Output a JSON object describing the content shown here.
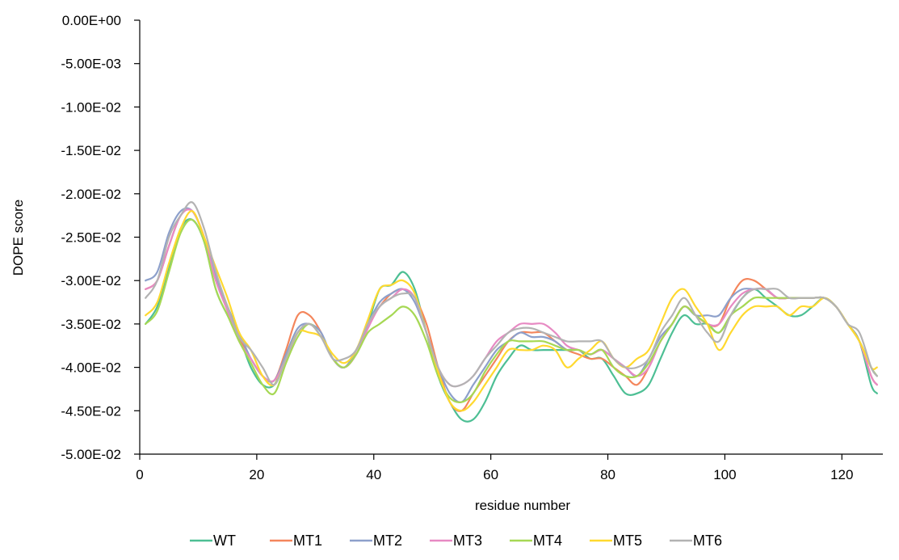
{
  "chart_data": {
    "type": "line",
    "title": "",
    "xlabel": "residue number",
    "ylabel": "DOPE score",
    "xlim": [
      0,
      127
    ],
    "ylim": [
      -0.05,
      0
    ],
    "xticks": [
      0,
      20,
      40,
      60,
      80,
      100,
      120
    ],
    "xtick_labels": [
      "0",
      "20",
      "40",
      "60",
      "80",
      "100",
      "120"
    ],
    "yticks": [
      0,
      -0.005,
      -0.01,
      -0.015,
      -0.02,
      -0.025,
      -0.03,
      -0.035,
      -0.04,
      -0.045,
      -0.05
    ],
    "ytick_labels": [
      "0.00E+00",
      "-5.00E-03",
      "-1.00E-02",
      "-1.50E-02",
      "-2.00E-02",
      "-2.50E-02",
      "-3.00E-02",
      "-3.50E-02",
      "-4.00E-02",
      "-4.50E-02",
      "-5.00E-02"
    ],
    "grid": false,
    "legend_position": "bottom",
    "x": [
      1,
      3,
      5,
      7,
      9,
      11,
      13,
      15,
      17,
      19,
      21,
      23,
      25,
      27,
      29,
      31,
      33,
      35,
      37,
      39,
      41,
      43,
      45,
      47,
      49,
      51,
      53,
      55,
      57,
      59,
      61,
      63,
      65,
      67,
      69,
      71,
      73,
      75,
      77,
      79,
      81,
      83,
      85,
      87,
      89,
      91,
      93,
      95,
      97,
      99,
      101,
      103,
      105,
      107,
      109,
      111,
      113,
      115,
      117,
      119,
      121,
      123,
      125,
      126
    ],
    "series": [
      {
        "name": "WT",
        "color": "#4dbf94",
        "values": [
          -0.035,
          -0.033,
          -0.0285,
          -0.024,
          -0.023,
          -0.0255,
          -0.031,
          -0.034,
          -0.0365,
          -0.04,
          -0.042,
          -0.042,
          -0.039,
          -0.036,
          -0.035,
          -0.0365,
          -0.039,
          -0.04,
          -0.038,
          -0.035,
          -0.031,
          -0.0305,
          -0.029,
          -0.031,
          -0.036,
          -0.041,
          -0.044,
          -0.046,
          -0.046,
          -0.044,
          -0.041,
          -0.039,
          -0.0375,
          -0.038,
          -0.038,
          -0.038,
          -0.038,
          -0.038,
          -0.039,
          -0.039,
          -0.041,
          -0.043,
          -0.043,
          -0.042,
          -0.039,
          -0.036,
          -0.034,
          -0.035,
          -0.035,
          -0.036,
          -0.034,
          -0.032,
          -0.031,
          -0.032,
          -0.033,
          -0.034,
          -0.034,
          -0.033,
          -0.032,
          -0.033,
          -0.035,
          -0.037,
          -0.042,
          -0.043
        ]
      },
      {
        "name": "MT1",
        "color": "#f4865c",
        "values": [
          -0.031,
          -0.03,
          -0.026,
          -0.0225,
          -0.022,
          -0.025,
          -0.03,
          -0.033,
          -0.0365,
          -0.039,
          -0.041,
          -0.0415,
          -0.038,
          -0.034,
          -0.034,
          -0.036,
          -0.039,
          -0.04,
          -0.038,
          -0.035,
          -0.033,
          -0.0315,
          -0.031,
          -0.032,
          -0.035,
          -0.04,
          -0.044,
          -0.045,
          -0.043,
          -0.041,
          -0.039,
          -0.037,
          -0.036,
          -0.036,
          -0.036,
          -0.037,
          -0.038,
          -0.0385,
          -0.039,
          -0.039,
          -0.04,
          -0.041,
          -0.042,
          -0.04,
          -0.037,
          -0.035,
          -0.033,
          -0.034,
          -0.035,
          -0.035,
          -0.032,
          -0.03,
          -0.03,
          -0.031,
          -0.032,
          -0.032,
          -0.032,
          -0.032,
          -0.032,
          -0.033,
          -0.035,
          -0.037,
          -0.041,
          -0.042
        ]
      },
      {
        "name": "MT2",
        "color": "#8da0cb",
        "values": [
          -0.03,
          -0.029,
          -0.0245,
          -0.022,
          -0.022,
          -0.025,
          -0.0295,
          -0.033,
          -0.036,
          -0.039,
          -0.041,
          -0.0415,
          -0.0385,
          -0.0355,
          -0.035,
          -0.036,
          -0.039,
          -0.04,
          -0.038,
          -0.035,
          -0.0325,
          -0.0315,
          -0.031,
          -0.0325,
          -0.036,
          -0.04,
          -0.043,
          -0.044,
          -0.042,
          -0.04,
          -0.038,
          -0.037,
          -0.036,
          -0.0365,
          -0.0365,
          -0.037,
          -0.038,
          -0.038,
          -0.0385,
          -0.038,
          -0.039,
          -0.04,
          -0.041,
          -0.039,
          -0.0365,
          -0.035,
          -0.033,
          -0.034,
          -0.034,
          -0.034,
          -0.032,
          -0.031,
          -0.031,
          -0.031,
          -0.032,
          -0.032,
          -0.032,
          -0.032,
          -0.032,
          -0.033,
          -0.035,
          -0.037,
          -0.04,
          -0.041
        ]
      },
      {
        "name": "MT3",
        "color": "#e78ac3",
        "values": [
          -0.031,
          -0.03,
          -0.026,
          -0.0225,
          -0.022,
          -0.025,
          -0.03,
          -0.0335,
          -0.037,
          -0.039,
          -0.041,
          -0.0415,
          -0.039,
          -0.036,
          -0.035,
          -0.0365,
          -0.039,
          -0.04,
          -0.0385,
          -0.0355,
          -0.033,
          -0.032,
          -0.031,
          -0.032,
          -0.036,
          -0.04,
          -0.042,
          -0.042,
          -0.041,
          -0.039,
          -0.037,
          -0.036,
          -0.035,
          -0.035,
          -0.035,
          -0.036,
          -0.0375,
          -0.038,
          -0.0385,
          -0.038,
          -0.039,
          -0.04,
          -0.041,
          -0.04,
          -0.037,
          -0.035,
          -0.033,
          -0.034,
          -0.035,
          -0.035,
          -0.033,
          -0.0315,
          -0.031,
          -0.031,
          -0.032,
          -0.032,
          -0.032,
          -0.032,
          -0.032,
          -0.033,
          -0.035,
          -0.037,
          -0.041,
          -0.042
        ]
      },
      {
        "name": "MT4",
        "color": "#a6d854",
        "values": [
          -0.035,
          -0.0335,
          -0.029,
          -0.0245,
          -0.023,
          -0.0255,
          -0.031,
          -0.034,
          -0.037,
          -0.0395,
          -0.042,
          -0.043,
          -0.0395,
          -0.0365,
          -0.035,
          -0.0365,
          -0.039,
          -0.04,
          -0.0385,
          -0.036,
          -0.035,
          -0.034,
          -0.033,
          -0.034,
          -0.037,
          -0.041,
          -0.0435,
          -0.044,
          -0.043,
          -0.0405,
          -0.0385,
          -0.037,
          -0.037,
          -0.037,
          -0.037,
          -0.0375,
          -0.038,
          -0.038,
          -0.0385,
          -0.038,
          -0.04,
          -0.041,
          -0.041,
          -0.0395,
          -0.037,
          -0.035,
          -0.033,
          -0.034,
          -0.035,
          -0.036,
          -0.034,
          -0.033,
          -0.032,
          -0.032,
          -0.032,
          -0.032,
          -0.032,
          -0.032,
          -0.032,
          -0.033,
          -0.035,
          -0.037,
          -0.04,
          -0.041
        ]
      },
      {
        "name": "MT5",
        "color": "#ffd92f",
        "values": [
          -0.034,
          -0.0325,
          -0.028,
          -0.024,
          -0.022,
          -0.025,
          -0.0285,
          -0.032,
          -0.036,
          -0.038,
          -0.041,
          -0.042,
          -0.039,
          -0.036,
          -0.036,
          -0.0365,
          -0.0385,
          -0.0395,
          -0.038,
          -0.0345,
          -0.031,
          -0.0305,
          -0.03,
          -0.0315,
          -0.036,
          -0.0405,
          -0.044,
          -0.045,
          -0.044,
          -0.042,
          -0.04,
          -0.038,
          -0.038,
          -0.038,
          -0.0375,
          -0.038,
          -0.04,
          -0.039,
          -0.038,
          -0.037,
          -0.039,
          -0.04,
          -0.039,
          -0.038,
          -0.035,
          -0.032,
          -0.031,
          -0.033,
          -0.035,
          -0.038,
          -0.036,
          -0.034,
          -0.033,
          -0.033,
          -0.033,
          -0.034,
          -0.033,
          -0.033,
          -0.032,
          -0.033,
          -0.035,
          -0.037,
          -0.04,
          -0.04
        ]
      },
      {
        "name": "MT6",
        "color": "#b3b3b3",
        "values": [
          -0.032,
          -0.03,
          -0.025,
          -0.0225,
          -0.021,
          -0.024,
          -0.029,
          -0.033,
          -0.0365,
          -0.038,
          -0.04,
          -0.042,
          -0.039,
          -0.036,
          -0.035,
          -0.0365,
          -0.039,
          -0.039,
          -0.038,
          -0.035,
          -0.033,
          -0.032,
          -0.0315,
          -0.032,
          -0.036,
          -0.04,
          -0.042,
          -0.042,
          -0.041,
          -0.039,
          -0.0375,
          -0.036,
          -0.0355,
          -0.0355,
          -0.036,
          -0.0365,
          -0.037,
          -0.037,
          -0.037,
          -0.037,
          -0.039,
          -0.04,
          -0.04,
          -0.039,
          -0.036,
          -0.034,
          -0.032,
          -0.034,
          -0.036,
          -0.037,
          -0.034,
          -0.032,
          -0.031,
          -0.031,
          -0.031,
          -0.032,
          -0.032,
          -0.032,
          -0.032,
          -0.033,
          -0.035,
          -0.036,
          -0.04,
          -0.041
        ]
      }
    ]
  }
}
